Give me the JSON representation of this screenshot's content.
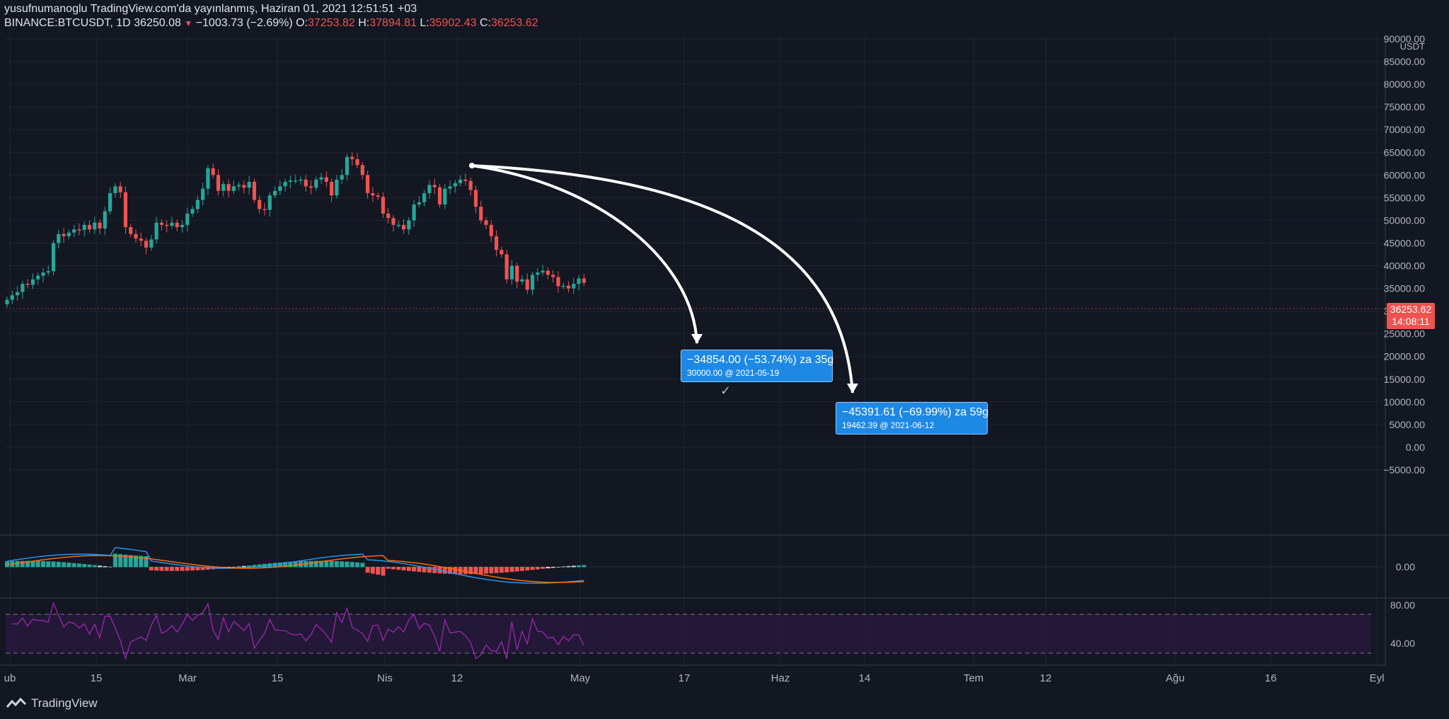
{
  "header": {
    "published": "yusufnumanoglu TradingView.com'da yayınlanmış, Haziran 01, 2021 12:51:51 +03",
    "symbol": "BINANCE:BTCUSDT, 1D",
    "last": "36250.08",
    "change": "−1003.73 (−2.69%)",
    "o_label": "O:",
    "o_value": "37253.82",
    "h_label": "H:",
    "h_value": "37894.81",
    "l_label": "L:",
    "l_value": "35902.43",
    "c_label": "C:",
    "c_value": "36253.62"
  },
  "price_axis": {
    "currency": "USDT",
    "ticks": [
      "90000.00",
      "85000.00",
      "80000.00",
      "75000.00",
      "70000.00",
      "65000.00",
      "60000.00",
      "55000.00",
      "50000.00",
      "45000.00",
      "40000.00",
      "35000.00",
      "30000.00",
      "25000.00",
      "20000.00",
      "15000.00",
      "10000.00",
      "5000.00",
      "0.00",
      "−5000.00"
    ],
    "last_price": "36253.62",
    "countdown": "14:08:11"
  },
  "macd_axis": {
    "ticks": [
      "0.00"
    ]
  },
  "rsi_axis": {
    "ticks": [
      "80.00",
      "40.00"
    ]
  },
  "time_axis": {
    "labels": [
      "ub",
      "15",
      "Mar",
      "15",
      "Nis",
      "12",
      "May",
      "17",
      "Haz",
      "14",
      "Tem",
      "12",
      "Ağu",
      "16",
      "Eyl"
    ]
  },
  "measure_1": {
    "line1": "−34854.00 (−53.74%) za 35g",
    "line2": "30000.00 @ 2021-05-19"
  },
  "measure_2": {
    "line1": "−45391.61 (−69.99%) za 59g",
    "line2": "19462.39 @ 2021-06-12"
  },
  "footer": {
    "brand": "TradingView"
  },
  "colors": {
    "background": "#131722",
    "up": "#26a69a",
    "down": "#ef5350",
    "macd_line": "#2196f3",
    "signal_line": "#ff6d00",
    "rsi_line": "#9c27b0",
    "measure_bg": "#1e88e5"
  },
  "chart_data": {
    "type": "candlestick",
    "symbol": "BINANCE:BTCUSDT",
    "interval": "1D",
    "ylim": [
      -10000,
      90000
    ],
    "candles_close_approx": [
      32500,
      33500,
      34200,
      36000,
      35800,
      37000,
      37800,
      38500,
      38800,
      45000,
      47000,
      46500,
      47300,
      48000,
      47900,
      49000,
      48000,
      49500,
      48200,
      52000,
      56000,
      57500,
      56200,
      48500,
      47000,
      46000,
      45500,
      44000,
      45800,
      49500,
      49000,
      48800,
      49500,
      48500,
      49000,
      51500,
      52500,
      54500,
      57000,
      61500,
      60000,
      56500,
      58000,
      56500,
      57500,
      57800,
      57200,
      58500,
      54500,
      52500,
      52300,
      55500,
      56500,
      57500,
      58500,
      58800,
      58800,
      59000,
      57500,
      57200,
      59000,
      59500,
      58500,
      55500,
      59000,
      60000,
      64000,
      63500,
      62200,
      60000,
      56000,
      55500,
      55200,
      51500,
      50500,
      49000,
      49000,
      48000,
      50000,
      53500,
      54000,
      56000,
      57800,
      57300,
      53500,
      57000,
      57500,
      58200,
      59000,
      58700,
      56700,
      53000,
      50000,
      49000,
      46500,
      43500,
      42500,
      37000,
      40000,
      36500,
      37000,
      34700,
      38000,
      38500,
      38900,
      38000,
      37500,
      35500,
      35600,
      35000,
      36000,
      37200,
      36250
    ]
  }
}
